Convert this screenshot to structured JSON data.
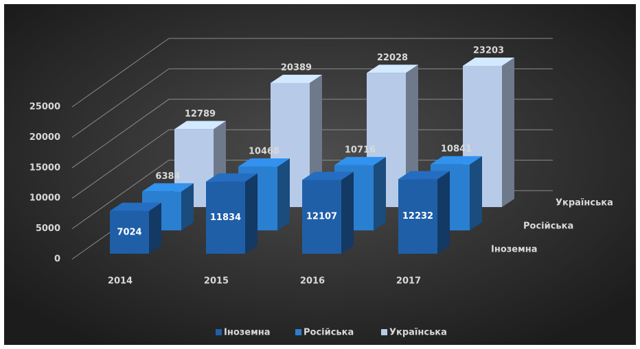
{
  "chart_data": {
    "type": "bar3d",
    "categories": [
      "2014",
      "2015",
      "2016",
      "2017"
    ],
    "series": [
      {
        "name": "Іноземна",
        "color": "#1f5fa8",
        "values": [
          7024,
          11834,
          12107,
          12232
        ]
      },
      {
        "name": "Російська",
        "color": "#2b7fd0",
        "values": [
          6384,
          10468,
          10716,
          10841
        ]
      },
      {
        "name": "Українська",
        "color": "#b7cbe8",
        "values": [
          12789,
          20389,
          22028,
          23203
        ]
      }
    ],
    "ylim": [
      0,
      25000
    ],
    "yticks": [
      0,
      5000,
      10000,
      15000,
      20000,
      25000
    ],
    "grid": true
  }
}
